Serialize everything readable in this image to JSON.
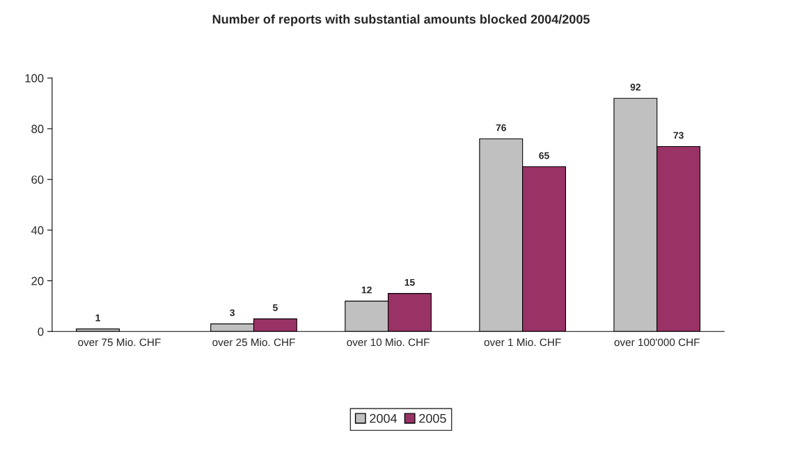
{
  "chart_data": {
    "type": "bar",
    "title": "Number of reports with substantial amounts blocked 2004/2005",
    "categories": [
      "over 75 Mio. CHF",
      "over 25 Mio. CHF",
      "over 10 Mio. CHF",
      "over 1 Mio. CHF",
      "over 100'000 CHF"
    ],
    "series": [
      {
        "name": "2004",
        "color": "#c0c0c0",
        "values": [
          1,
          3,
          12,
          76,
          92
        ]
      },
      {
        "name": "2005",
        "color": "#993366",
        "values": [
          null,
          5,
          15,
          65,
          73
        ]
      }
    ],
    "ylim": [
      0,
      100
    ],
    "yticks": [
      0,
      20,
      40,
      60,
      80,
      100
    ],
    "grid": false,
    "legend": "bottom",
    "data_labels": true
  }
}
